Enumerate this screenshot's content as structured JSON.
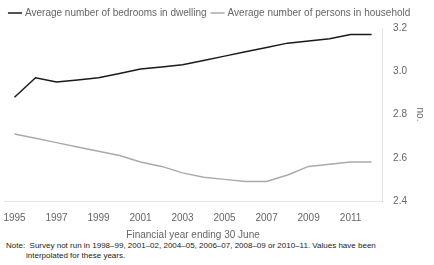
{
  "chart_data": {
    "type": "line",
    "x": [
      1995,
      1996,
      1997,
      1998,
      1999,
      2000,
      2001,
      2002,
      2003,
      2004,
      2005,
      2006,
      2007,
      2008,
      2009,
      2010,
      2011,
      2012
    ],
    "series": [
      {
        "name": "Average number of bedrooms in dwelling",
        "color": "#1a1a1a",
        "values": [
          2.88,
          2.97,
          2.95,
          2.96,
          2.97,
          2.99,
          3.01,
          3.02,
          3.03,
          3.05,
          3.07,
          3.09,
          3.11,
          3.13,
          3.14,
          3.15,
          3.17,
          3.17
        ]
      },
      {
        "name": "Average number of persons in household",
        "color": "#aaaaaa",
        "values": [
          2.71,
          2.69,
          2.67,
          2.65,
          2.63,
          2.61,
          2.58,
          2.56,
          2.53,
          2.51,
          2.5,
          2.49,
          2.49,
          2.52,
          2.56,
          2.57,
          2.58,
          2.58
        ]
      }
    ],
    "xlabel": "Financial year ending 30 June",
    "ylabel": "no.",
    "xlim": [
      1994.5,
      2012.5
    ],
    "xticks": [
      1995,
      1997,
      1999,
      2001,
      2003,
      2005,
      2007,
      2009,
      2011
    ],
    "ylim": [
      2.4,
      3.2
    ],
    "yticks": [
      2.4,
      2.6,
      2.8,
      {
        "value": 3.0,
        "label": "3.0"
      },
      3.2
    ],
    "grid": false,
    "legend": "upper left",
    "annotations": [
      "Note:  Survey not run in 1998–99, 2001–02, 2004–05, 2006–07, 2008–09 or 2010–11. Values have been",
      "         interpolated for these years."
    ]
  }
}
